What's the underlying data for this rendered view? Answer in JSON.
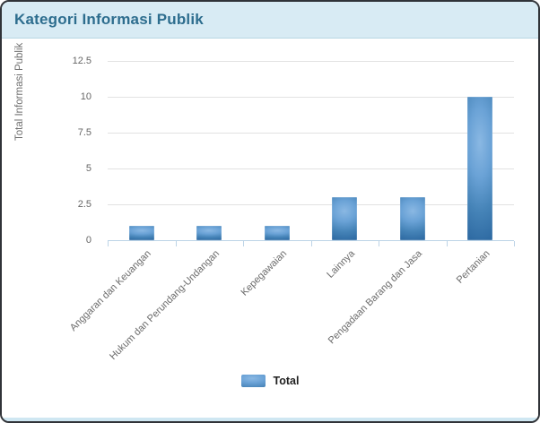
{
  "card": {
    "title": "Kategori Informasi Publik"
  },
  "chart_data": {
    "type": "bar",
    "title": "Kategori Informasi Publik",
    "categories": [
      "Anggaran dan Keuangan",
      "Hukum dan Perundang-Undangan",
      "Kepegawaian",
      "Lainnya",
      "Pengadaan Barang dan Jasa",
      "Pertanian"
    ],
    "series": [
      {
        "name": "Total",
        "values": [
          1,
          1,
          1,
          3,
          3,
          10
        ]
      }
    ],
    "xlabel": "",
    "ylabel": "Total Informasi Publik",
    "ylim": [
      0,
      12.5
    ],
    "yticks": [
      0,
      2.5,
      5,
      7.5,
      10,
      12.5
    ],
    "grid": true,
    "legend_position": "bottom",
    "x_label_rotation": -45,
    "bar_color": "#4a86ba"
  },
  "colors": {
    "header_bg": "#d8ebf4",
    "title_text": "#2d6d8e",
    "bar_edge": "#2f6ba3",
    "bar_center": "#8ab8e3",
    "grid_line": "#e2e2e2",
    "axis_line": "#bdd4e7",
    "label_text": "#666666"
  }
}
